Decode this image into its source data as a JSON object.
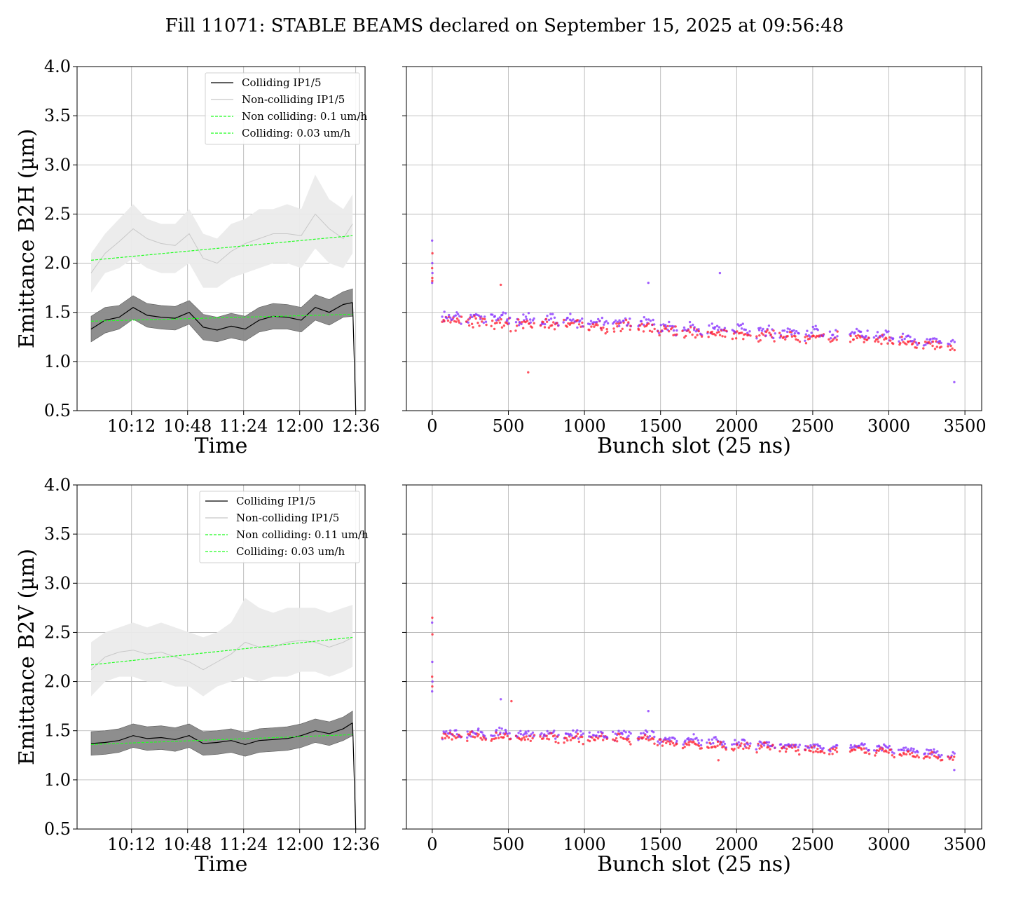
{
  "figure": {
    "title": "Fill 11071: STABLE BEAMS declared on September 15, 2025 at 09:56:48"
  },
  "chart_data": [
    {
      "type": "line",
      "panel": "B2H-time",
      "xlabel": "Time",
      "ylabel": "Emittance B2H (µm)",
      "x_ticks": [
        "10:12",
        "10:48",
        "11:24",
        "12:00",
        "12:36"
      ],
      "x_tick_minutes": [
        612,
        648,
        684,
        720,
        756
      ],
      "xlim_minutes": [
        577,
        762
      ],
      "ylim": [
        0.5,
        4.0
      ],
      "y_ticks": [
        "0.5",
        "1.0",
        "1.5",
        "2.0",
        "2.5",
        "3.0",
        "3.5",
        "4.0"
      ],
      "grid": true,
      "legend_position": "top-right",
      "time_minutes": [
        586,
        595,
        604,
        613,
        622,
        631,
        640,
        649,
        658,
        667,
        676,
        685,
        694,
        703,
        712,
        721,
        730,
        739,
        748,
        754
      ],
      "series": [
        {
          "name": "Colliding IP1/5",
          "color": "#000000",
          "style": "solid",
          "values": [
            1.33,
            1.42,
            1.45,
            1.55,
            1.47,
            1.45,
            1.44,
            1.5,
            1.35,
            1.32,
            1.36,
            1.33,
            1.42,
            1.46,
            1.45,
            1.42,
            1.55,
            1.5,
            1.58,
            1.6
          ],
          "band_low": [
            1.2,
            1.29,
            1.33,
            1.43,
            1.35,
            1.33,
            1.32,
            1.38,
            1.22,
            1.2,
            1.24,
            1.21,
            1.3,
            1.33,
            1.33,
            1.3,
            1.42,
            1.37,
            1.45,
            1.46
          ],
          "band_high": [
            1.46,
            1.55,
            1.57,
            1.67,
            1.59,
            1.57,
            1.56,
            1.62,
            1.48,
            1.45,
            1.49,
            1.46,
            1.55,
            1.59,
            1.58,
            1.55,
            1.68,
            1.63,
            1.71,
            1.74
          ],
          "band_color": "#888888"
        },
        {
          "name": "Non-colliding IP1/5",
          "color": "#c8c8c8",
          "style": "solid",
          "values": [
            1.9,
            2.1,
            2.22,
            2.35,
            2.25,
            2.2,
            2.18,
            2.3,
            2.05,
            2.0,
            2.12,
            2.2,
            2.25,
            2.3,
            2.3,
            2.28,
            2.5,
            2.35,
            2.25,
            2.4
          ],
          "band_low": [
            1.7,
            1.9,
            1.95,
            2.05,
            1.95,
            1.9,
            1.9,
            2.0,
            1.75,
            1.75,
            1.85,
            1.9,
            1.95,
            2.0,
            2.0,
            1.95,
            2.15,
            2.0,
            1.95,
            2.1
          ],
          "band_high": [
            2.1,
            2.3,
            2.45,
            2.6,
            2.45,
            2.4,
            2.4,
            2.55,
            2.3,
            2.25,
            2.4,
            2.45,
            2.55,
            2.55,
            2.6,
            2.55,
            2.9,
            2.65,
            2.55,
            2.7
          ],
          "band_color": "#ebebeb"
        },
        {
          "name": "Non colliding: 0.1 um/h",
          "color": "#22ff22",
          "style": "dashed",
          "x": [
            586,
            754
          ],
          "values": [
            2.03,
            2.28
          ]
        },
        {
          "name": "Colliding: 0.03 um/h",
          "color": "#22ff22",
          "style": "dashed",
          "x": [
            586,
            754
          ],
          "values": [
            1.41,
            1.48
          ]
        }
      ],
      "end_drop": {
        "x": [
          754,
          756
        ],
        "values": [
          1.6,
          0.5
        ]
      }
    },
    {
      "type": "scatter",
      "panel": "B2H-bunch",
      "xlabel": "Bunch slot (25 ns)",
      "ylabel": "",
      "xlim": [
        -170,
        3610
      ],
      "x_ticks": [
        0,
        500,
        1000,
        1500,
        2000,
        2500,
        3000,
        3500
      ],
      "ylim": [
        0.5,
        4.0
      ],
      "grid": true,
      "colors": [
        "#8833ff",
        "#ff2233"
      ],
      "pilot": {
        "x": 0,
        "values": [
          1.8,
          1.85,
          1.9,
          1.95,
          2.0,
          2.1,
          2.23,
          1.82
        ]
      },
      "trains": [
        {
          "start": 60,
          "end": 1460,
          "mean_start": 1.4,
          "mean_end": 1.33,
          "spread": 0.09
        },
        {
          "start": 1480,
          "end": 2660,
          "mean_start": 1.3,
          "mean_end": 1.22,
          "spread": 0.08
        },
        {
          "start": 2740,
          "end": 3430,
          "mean_start": 1.24,
          "mean_end": 1.12,
          "spread": 0.07
        }
      ],
      "outliers": [
        [
          1890,
          1.9
        ],
        [
          630,
          0.89
        ],
        [
          3430,
          0.79
        ],
        [
          450,
          1.78
        ],
        [
          1420,
          1.8
        ]
      ]
    },
    {
      "type": "line",
      "panel": "B2V-time",
      "xlabel": "Time",
      "ylabel": "Emittance B2V (µm)",
      "x_ticks": [
        "10:12",
        "10:48",
        "11:24",
        "12:00",
        "12:36"
      ],
      "x_tick_minutes": [
        612,
        648,
        684,
        720,
        756
      ],
      "xlim_minutes": [
        577,
        762
      ],
      "ylim": [
        0.5,
        4.0
      ],
      "y_ticks": [
        "0.5",
        "1.0",
        "1.5",
        "2.0",
        "2.5",
        "3.0",
        "3.5",
        "4.0"
      ],
      "grid": true,
      "legend_position": "top-right",
      "time_minutes": [
        586,
        595,
        604,
        613,
        622,
        631,
        640,
        649,
        658,
        667,
        676,
        685,
        694,
        703,
        712,
        721,
        730,
        739,
        748,
        754
      ],
      "series": [
        {
          "name": "Colliding IP1/5",
          "color": "#000000",
          "style": "solid",
          "values": [
            1.37,
            1.38,
            1.4,
            1.45,
            1.42,
            1.43,
            1.41,
            1.45,
            1.37,
            1.38,
            1.4,
            1.36,
            1.4,
            1.41,
            1.42,
            1.45,
            1.5,
            1.47,
            1.52,
            1.58
          ],
          "band_low": [
            1.25,
            1.26,
            1.28,
            1.33,
            1.3,
            1.31,
            1.29,
            1.33,
            1.25,
            1.26,
            1.28,
            1.24,
            1.28,
            1.29,
            1.3,
            1.33,
            1.38,
            1.35,
            1.4,
            1.45
          ],
          "band_high": [
            1.49,
            1.5,
            1.52,
            1.57,
            1.54,
            1.55,
            1.53,
            1.57,
            1.49,
            1.5,
            1.52,
            1.48,
            1.52,
            1.53,
            1.54,
            1.57,
            1.62,
            1.59,
            1.64,
            1.7
          ],
          "band_color": "#888888"
        },
        {
          "name": "Non-colliding IP1/5",
          "color": "#c8c8c8",
          "style": "solid",
          "values": [
            2.12,
            2.25,
            2.3,
            2.32,
            2.28,
            2.3,
            2.25,
            2.2,
            2.12,
            2.2,
            2.28,
            2.4,
            2.35,
            2.35,
            2.4,
            2.42,
            2.4,
            2.35,
            2.4,
            2.45
          ],
          "band_low": [
            1.85,
            2.0,
            2.05,
            2.05,
            2.0,
            2.0,
            1.95,
            1.95,
            1.85,
            1.95,
            2.0,
            2.05,
            2.0,
            2.05,
            2.05,
            2.1,
            2.1,
            2.05,
            2.1,
            2.15
          ],
          "band_high": [
            2.4,
            2.5,
            2.55,
            2.6,
            2.55,
            2.6,
            2.55,
            2.5,
            2.45,
            2.5,
            2.6,
            2.85,
            2.75,
            2.7,
            2.75,
            2.75,
            2.75,
            2.7,
            2.75,
            2.78
          ],
          "band_color": "#ebebeb"
        },
        {
          "name": "Non colliding: 0.11 um/h",
          "color": "#22ff22",
          "style": "dashed",
          "x": [
            586,
            754
          ],
          "values": [
            2.17,
            2.45
          ]
        },
        {
          "name": "Colliding: 0.03 um/h",
          "color": "#22ff22",
          "style": "dashed",
          "x": [
            586,
            754
          ],
          "values": [
            1.36,
            1.46
          ]
        }
      ],
      "end_drop": {
        "x": [
          754,
          756
        ],
        "values": [
          1.58,
          0.5
        ]
      }
    },
    {
      "type": "scatter",
      "panel": "B2V-bunch",
      "xlabel": "Bunch slot (25 ns)",
      "ylabel": "",
      "xlim": [
        -170,
        3610
      ],
      "x_ticks": [
        0,
        500,
        1000,
        1500,
        2000,
        2500,
        3000,
        3500
      ],
      "ylim": [
        0.5,
        4.0
      ],
      "grid": true,
      "colors": [
        "#8833ff",
        "#ff2233"
      ],
      "pilot": {
        "x": 0,
        "values": [
          1.9,
          1.95,
          2.0,
          2.05,
          2.2,
          2.48,
          2.6,
          2.65
        ]
      },
      "trains": [
        {
          "start": 60,
          "end": 1460,
          "mean_start": 1.42,
          "mean_end": 1.4,
          "spread": 0.07
        },
        {
          "start": 1480,
          "end": 2660,
          "mean_start": 1.36,
          "mean_end": 1.28,
          "spread": 0.06
        },
        {
          "start": 2740,
          "end": 3430,
          "mean_start": 1.3,
          "mean_end": 1.2,
          "spread": 0.05
        }
      ],
      "outliers": [
        [
          450,
          1.82
        ],
        [
          520,
          1.8
        ],
        [
          1420,
          1.7
        ],
        [
          1880,
          1.2
        ],
        [
          3430,
          1.1
        ]
      ]
    }
  ]
}
